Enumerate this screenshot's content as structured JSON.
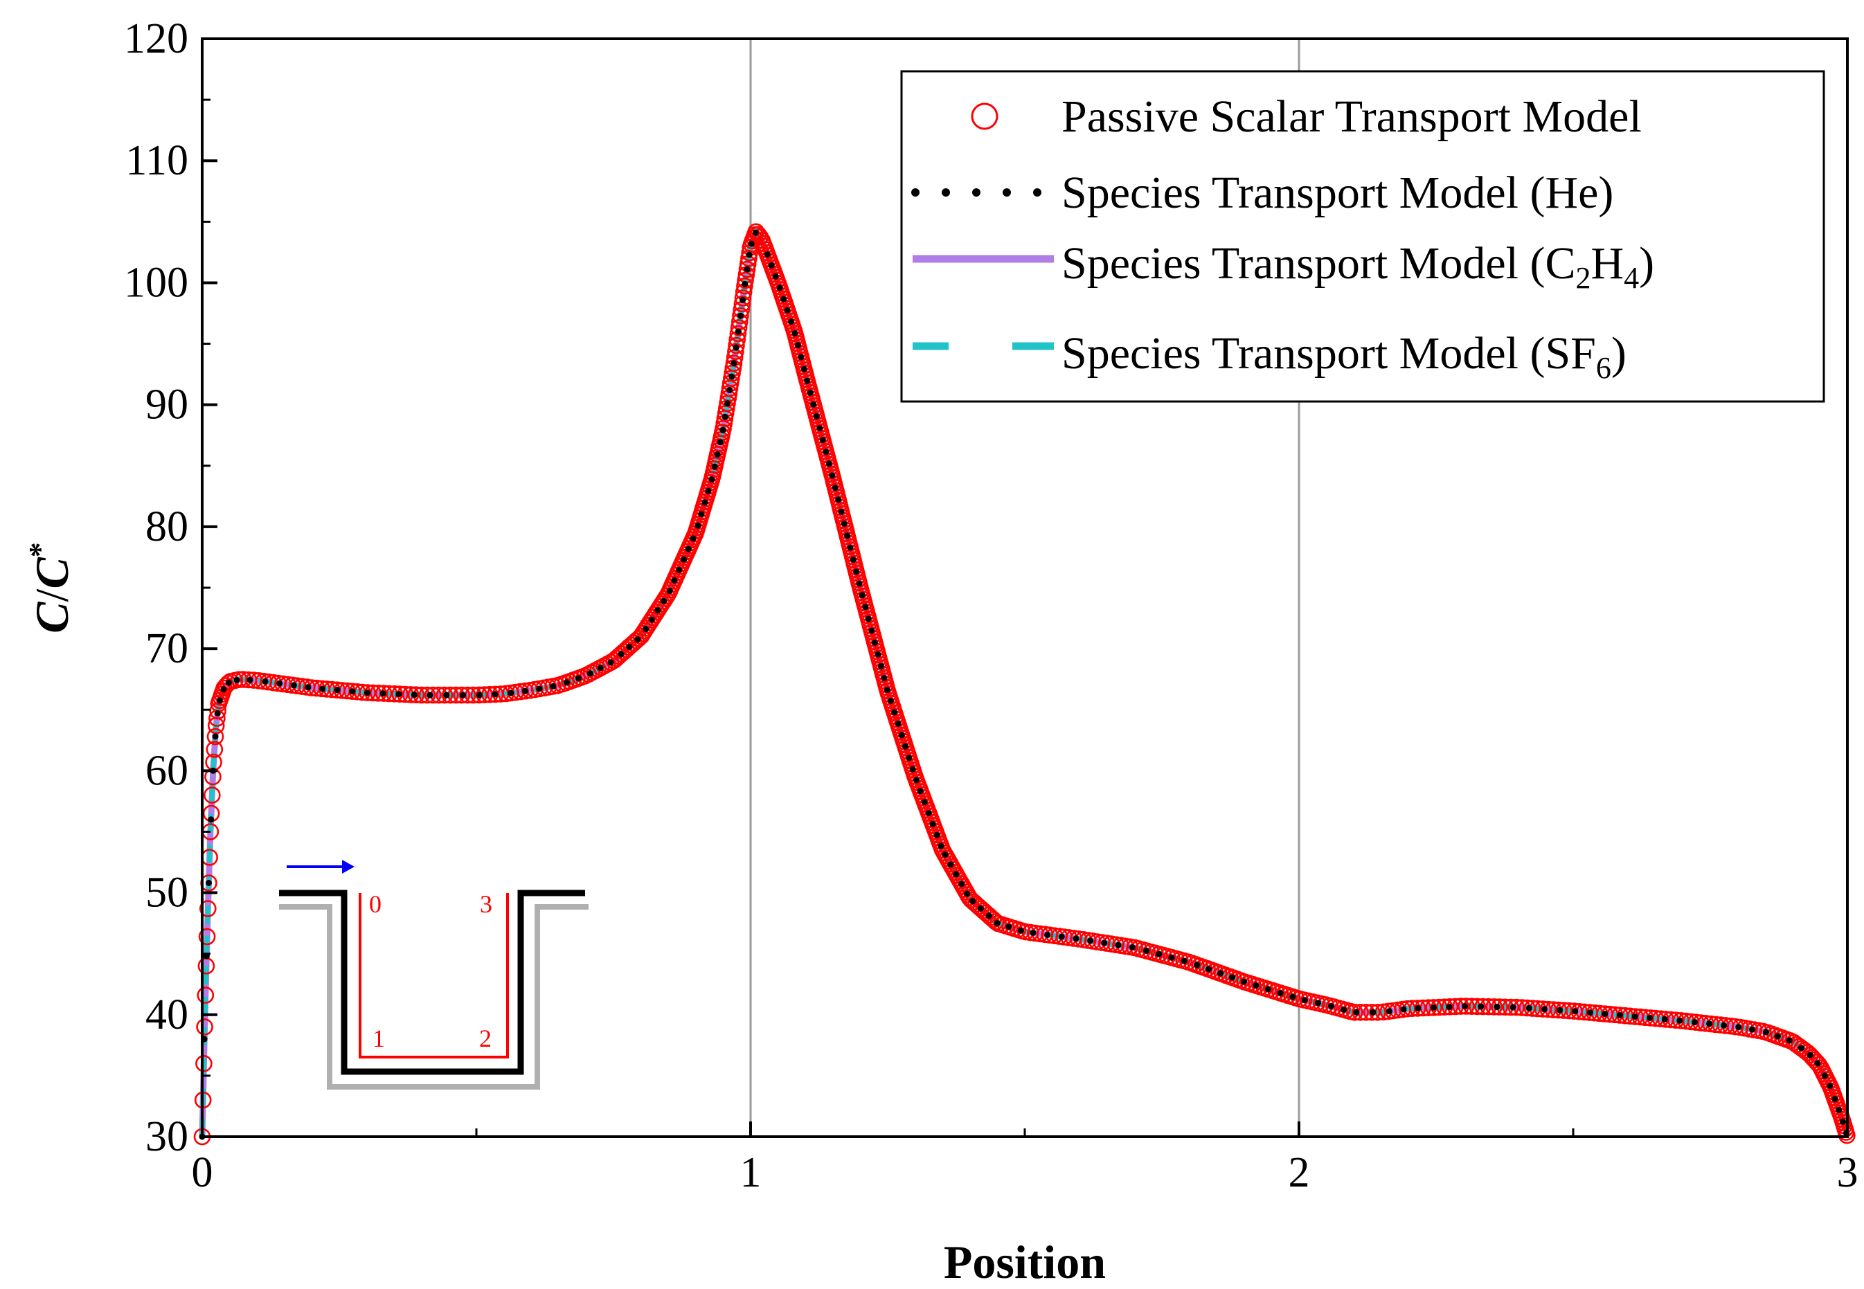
{
  "chart_data": {
    "type": "line",
    "title": "",
    "xlabel": "Position",
    "ylabel": {
      "c1": "C",
      "slash": "/",
      "c2": "C",
      "sup": "*"
    },
    "xlim": [
      0,
      3
    ],
    "ylim": [
      30,
      120
    ],
    "xticks": [
      0,
      1,
      2,
      3
    ],
    "yticks": [
      30,
      40,
      50,
      60,
      70,
      80,
      90,
      100,
      110,
      120
    ],
    "vertical_reference_lines": [
      1,
      2
    ],
    "legend_position": "top-right",
    "profile": [
      [
        0,
        30
      ],
      [
        0.005,
        40
      ],
      [
        0.01,
        48
      ],
      [
        0.015,
        55
      ],
      [
        0.02,
        60
      ],
      [
        0.025,
        63.5
      ],
      [
        0.03,
        65.5
      ],
      [
        0.04,
        66.8
      ],
      [
        0.05,
        67.3
      ],
      [
        0.07,
        67.5
      ],
      [
        0.1,
        67.4
      ],
      [
        0.15,
        67.1
      ],
      [
        0.2,
        66.8
      ],
      [
        0.3,
        66.4
      ],
      [
        0.4,
        66.2
      ],
      [
        0.5,
        66.2
      ],
      [
        0.55,
        66.3
      ],
      [
        0.6,
        66.6
      ],
      [
        0.65,
        67.0
      ],
      [
        0.7,
        67.8
      ],
      [
        0.75,
        69.0
      ],
      [
        0.8,
        71.0
      ],
      [
        0.85,
        74.5
      ],
      [
        0.9,
        79.5
      ],
      [
        0.93,
        84.0
      ],
      [
        0.95,
        88.0
      ],
      [
        0.97,
        93.5
      ],
      [
        0.99,
        100.0
      ],
      [
        1.0,
        103.0
      ],
      [
        1.01,
        104.2
      ],
      [
        1.02,
        103.6
      ],
      [
        1.05,
        100.0
      ],
      [
        1.08,
        96.0
      ],
      [
        1.1,
        92.5
      ],
      [
        1.15,
        84.0
      ],
      [
        1.2,
        75.0
      ],
      [
        1.25,
        66.5
      ],
      [
        1.3,
        59.5
      ],
      [
        1.35,
        53.5
      ],
      [
        1.4,
        49.5
      ],
      [
        1.45,
        47.5
      ],
      [
        1.5,
        46.8
      ],
      [
        1.6,
        46.2
      ],
      [
        1.7,
        45.5
      ],
      [
        1.8,
        44.3
      ],
      [
        1.9,
        42.7
      ],
      [
        2.0,
        41.3
      ],
      [
        2.05,
        40.8
      ],
      [
        2.1,
        40.2
      ],
      [
        2.15,
        40.2
      ],
      [
        2.2,
        40.5
      ],
      [
        2.3,
        40.7
      ],
      [
        2.4,
        40.6
      ],
      [
        2.5,
        40.3
      ],
      [
        2.6,
        39.9
      ],
      [
        2.7,
        39.5
      ],
      [
        2.8,
        39.0
      ],
      [
        2.85,
        38.6
      ],
      [
        2.9,
        37.8
      ],
      [
        2.93,
        36.8
      ],
      [
        2.95,
        35.8
      ],
      [
        2.97,
        34.0
      ],
      [
        2.99,
        31.5
      ],
      [
        3.0,
        30
      ]
    ],
    "series": [
      {
        "name": "Passive Scalar Transport Model",
        "style": "open-circle",
        "color": "#ff0000",
        "y_offset": 0
      },
      {
        "name": "Species Transport Model (He)",
        "style": "dotted",
        "color": "#000000",
        "y_offset": 0
      },
      {
        "name": "Species Transport Model (C2H4)",
        "style": "solid",
        "color": "#b07ee6",
        "y_offset": 0
      },
      {
        "name": "Species Transport Model (SF6)",
        "style": "dashed",
        "color": "#20c4c8",
        "y_offset": 0
      }
    ],
    "legend": [
      {
        "main": "Passive Scalar Transport Model"
      },
      {
        "main": "Species Transport Model (He)"
      },
      {
        "main": "Species Transport Model (C",
        "sub1": "2",
        "mid": "H",
        "sub2": "4",
        "end": ")"
      },
      {
        "main": "Species Transport Model (SF",
        "sub1": "6",
        "end": ")"
      }
    ],
    "inset": {
      "description": "U-shaped channel schematic with flow arrow",
      "labels": [
        "0",
        "1",
        "2",
        "3"
      ],
      "arrow_color": "#0000ff",
      "wall_color": "#000000",
      "shadow_color": "#b0b0b0",
      "path_color": "#ff0000"
    }
  }
}
